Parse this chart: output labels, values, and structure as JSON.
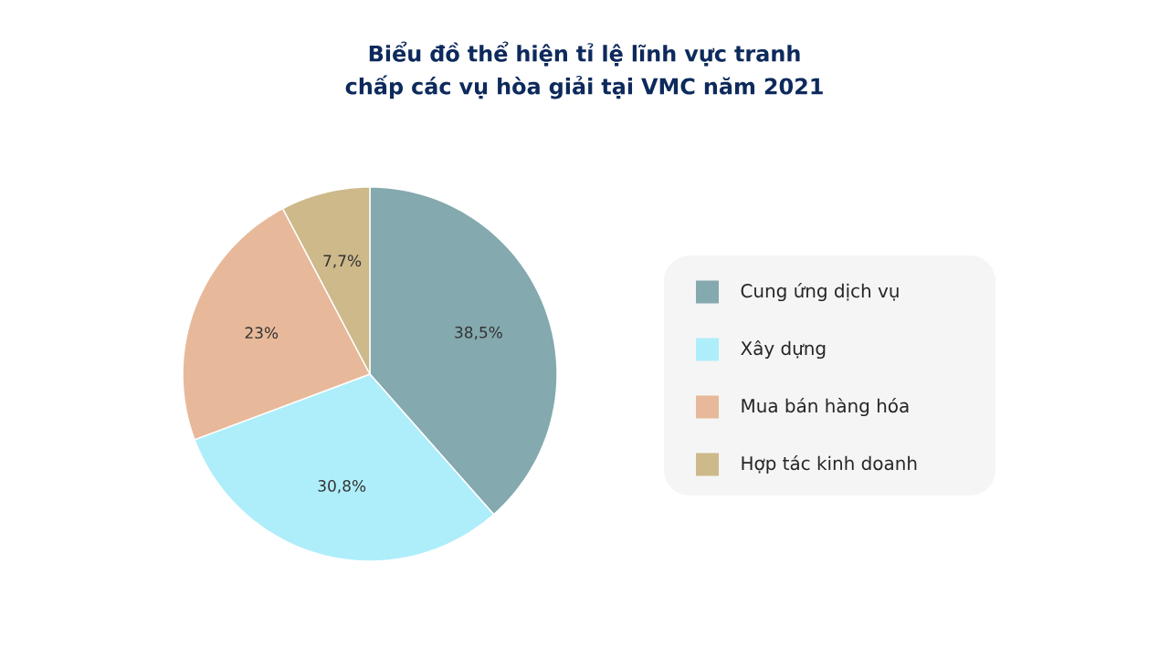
{
  "chart_data": {
    "type": "pie",
    "title": "Biểu đồ thể hiện tỉ lệ lĩnh vực tranh chấp các vụ hòa giải tại VMC năm 2021",
    "categories": [
      "Cung ứng dịch vụ",
      "Xây dựng",
      "Mua bán hàng hóa",
      "Hợp tác kinh doanh"
    ],
    "values": [
      38.5,
      30.8,
      23,
      7.7
    ],
    "value_labels": [
      "38,5%",
      "30,8%",
      "23%",
      "7,7%"
    ],
    "colors": [
      "#84a9ae",
      "#aeeefa",
      "#e7b99a",
      "#cdb98a"
    ],
    "legend": "right"
  }
}
